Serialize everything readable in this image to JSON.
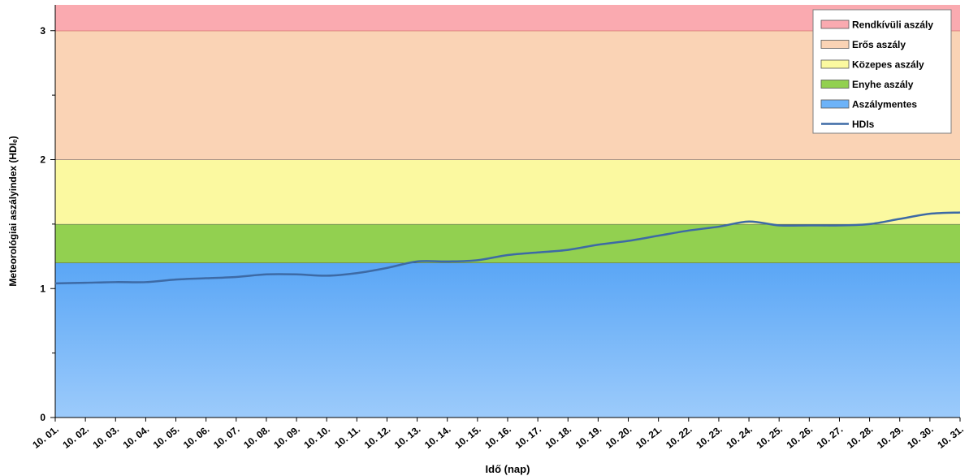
{
  "chart_data": {
    "type": "line",
    "title": "",
    "xlabel": "Idő (nap)",
    "ylabel": "Meteorológiai aszályindex (HDIₑ)",
    "ylim": [
      0,
      3.2
    ],
    "yticks": [
      0,
      1,
      2,
      3
    ],
    "ytick_labels": [
      "0",
      "1",
      "2",
      "3"
    ],
    "grid": false,
    "legend_position": "top-right",
    "categories": [
      "10. 01.",
      "10. 02.",
      "10. 03.",
      "10. 04.",
      "10. 05.",
      "10. 06.",
      "10. 07.",
      "10. 08.",
      "10. 09.",
      "10. 10.",
      "10. 11.",
      "10. 12.",
      "10. 13.",
      "10. 14.",
      "10. 15.",
      "10. 16.",
      "10. 17.",
      "10. 18.",
      "10. 19.",
      "10. 20.",
      "10. 21.",
      "10. 22.",
      "10. 23.",
      "10. 24.",
      "10. 25.",
      "10. 26.",
      "10. 27.",
      "10. 28.",
      "10. 29.",
      "10. 30.",
      "10. 31."
    ],
    "bands": [
      {
        "name": "Aszálymentes",
        "from": 0,
        "to": 1.2,
        "color": "#6db3f8"
      },
      {
        "name": "Enyhe aszály",
        "from": 1.2,
        "to": 1.5,
        "color": "#92d050"
      },
      {
        "name": "Közepes aszály",
        "from": 1.5,
        "to": 2.0,
        "color": "#fbf9a0"
      },
      {
        "name": "Erős aszály",
        "from": 2.0,
        "to": 3.0,
        "color": "#fad3b5"
      },
      {
        "name": "Rendkívüli aszály",
        "from": 3.0,
        "to": 3.2,
        "color": "#faaab0"
      }
    ],
    "series": [
      {
        "name": "HDIs",
        "color": "#3d6aa5",
        "values": [
          1.04,
          1.045,
          1.05,
          1.05,
          1.07,
          1.08,
          1.09,
          1.11,
          1.11,
          1.1,
          1.12,
          1.16,
          1.21,
          1.21,
          1.22,
          1.26,
          1.28,
          1.3,
          1.34,
          1.37,
          1.41,
          1.45,
          1.48,
          1.52,
          1.49,
          1.49,
          1.49,
          1.5,
          1.54,
          1.58,
          1.59
        ]
      }
    ],
    "legend": {
      "items": [
        {
          "label": "Rendkívüli aszály",
          "kind": "box",
          "color": "#faaab0"
        },
        {
          "label": "Erős aszály",
          "kind": "box",
          "color": "#fad3b5"
        },
        {
          "label": "Közepes aszály",
          "kind": "box",
          "color": "#fbf9a0"
        },
        {
          "label": "Enyhe aszály",
          "kind": "box",
          "color": "#92d050"
        },
        {
          "label": "Aszálymentes",
          "kind": "box",
          "color": "#6db3f8"
        },
        {
          "label": "HDIs",
          "kind": "line",
          "color": "#3d6aa5"
        }
      ]
    }
  }
}
